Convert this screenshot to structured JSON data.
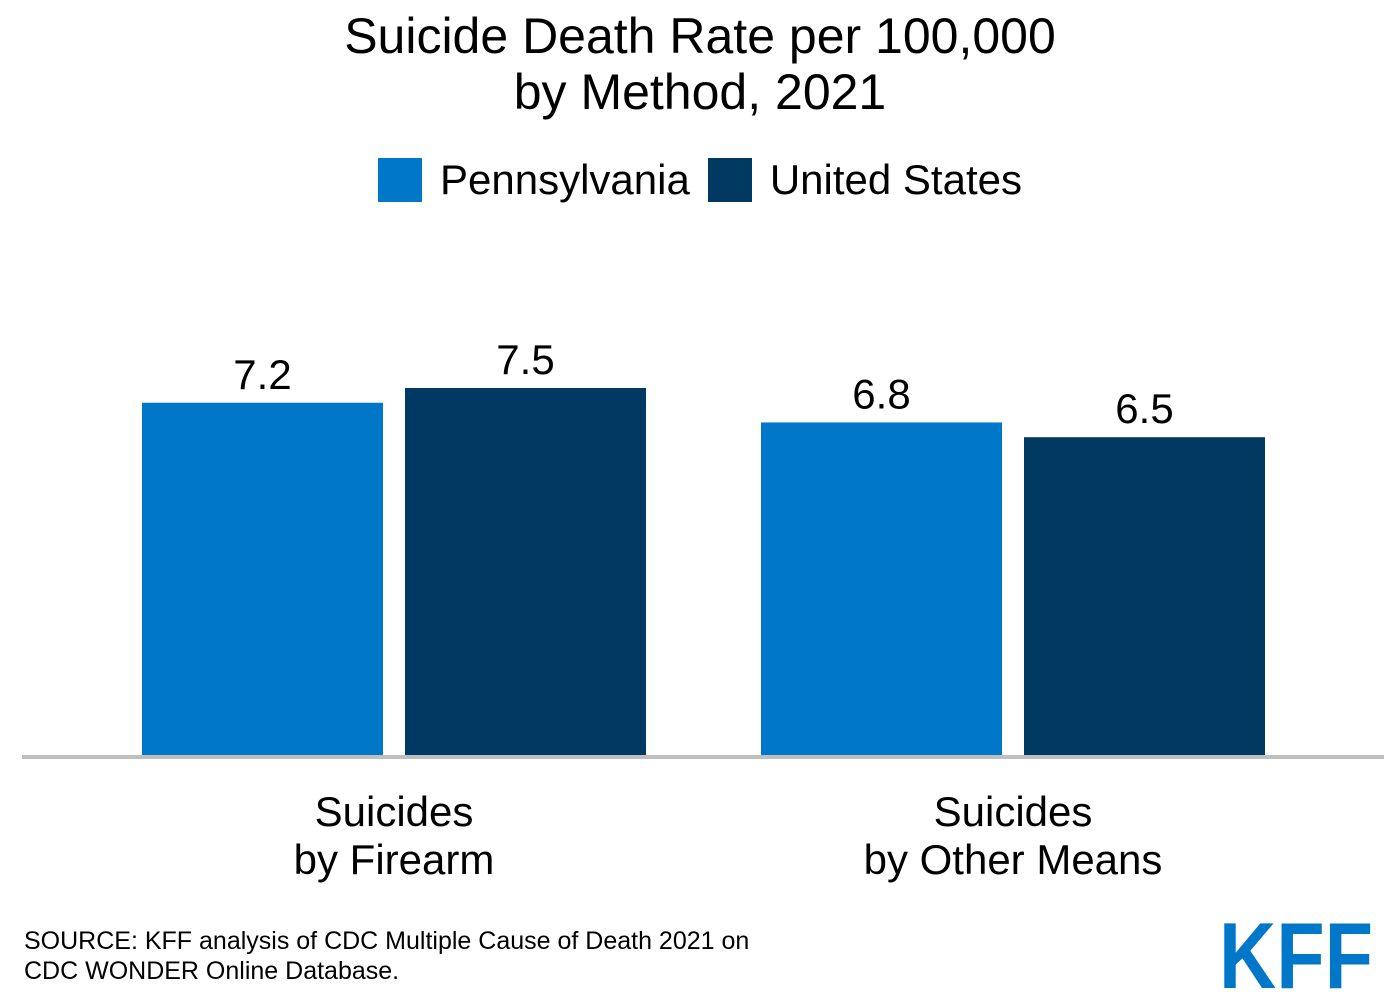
{
  "title_lines": [
    "Suicide Death Rate per 100,000",
    "by Method, 2021"
  ],
  "source_lines": [
    "SOURCE: KFF analysis of CDC Multiple Cause of Death 2021 on",
    "CDC WONDER Online Database."
  ],
  "logo_text": "KFF",
  "colors": {
    "pennsylvania": "#0077c8",
    "united_states": "#003a63",
    "axis": "#bfbfbf",
    "logo": "#0077c8"
  },
  "chart_data": {
    "type": "bar",
    "title": "Suicide Death Rate per 100,000 by Method, 2021",
    "categories": [
      [
        "Suicides",
        "by Firearm"
      ],
      [
        "Suicides",
        "by Other Means"
      ]
    ],
    "series": [
      {
        "name": "Pennsylvania",
        "values": [
          7.2,
          6.8
        ],
        "labels": [
          "7.2",
          "6.8"
        ],
        "color": "#0077c8"
      },
      {
        "name": "United States",
        "values": [
          7.5,
          6.5
        ],
        "labels": [
          "7.5",
          "6.5"
        ],
        "color": "#003a63"
      }
    ],
    "ylim": [
      0,
      7.5
    ],
    "grid": false,
    "legend": "top-center"
  }
}
